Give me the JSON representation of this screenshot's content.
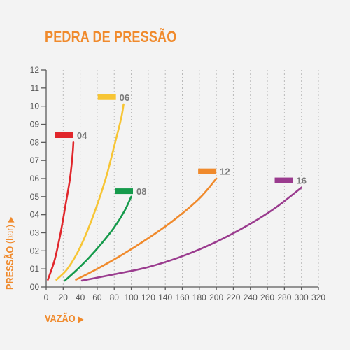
{
  "title": "PEDRA DE PRESSÃO",
  "chart_data": {
    "type": "line",
    "xlabel": "VAZÃO",
    "ylabel_main": "PRESSÃO",
    "ylabel_unit": "(bar)",
    "x_ticks": [
      "0",
      "20",
      "40",
      "60",
      "80",
      "100",
      "120",
      "140",
      "160",
      "180",
      "200",
      "220",
      "240",
      "260",
      "280",
      "300",
      "320"
    ],
    "x_tick_values": [
      0,
      20,
      40,
      60,
      80,
      100,
      120,
      140,
      160,
      180,
      200,
      220,
      240,
      260,
      280,
      300,
      320
    ],
    "y_ticks": [
      "00",
      "01",
      "02",
      "03",
      "04",
      "05",
      "06",
      "07",
      "08",
      "09",
      "10",
      "11",
      "12"
    ],
    "y_tick_values": [
      0,
      1,
      2,
      3,
      4,
      5,
      6,
      7,
      8,
      9,
      10,
      11,
      12
    ],
    "xlim": [
      0,
      320
    ],
    "ylim": [
      0,
      12
    ],
    "grid": "vertical dashed",
    "series": [
      {
        "name": "04",
        "color": "#e1262b",
        "x": [
          2,
          10,
          17,
          23,
          28,
          31,
          32
        ],
        "y": [
          0.4,
          1.5,
          3.0,
          4.6,
          6.0,
          7.3,
          8.0
        ],
        "legend_at": [
          32,
          8.4
        ]
      },
      {
        "name": "06",
        "color": "#f7c534",
        "x": [
          12,
          25,
          40,
          55,
          70,
          80,
          88,
          91
        ],
        "y": [
          0.4,
          1.0,
          2.2,
          3.9,
          6.0,
          7.8,
          9.3,
          10.1
        ],
        "legend_at": [
          82,
          10.5
        ]
      },
      {
        "name": "08",
        "color": "#159a4b",
        "x": [
          22,
          35,
          50,
          65,
          80,
          92,
          100
        ],
        "y": [
          0.35,
          0.9,
          1.6,
          2.4,
          3.3,
          4.2,
          5.0
        ],
        "legend_at": [
          102,
          5.3
        ]
      },
      {
        "name": "12",
        "color": "#f08a2c",
        "x": [
          35,
          60,
          90,
          120,
          150,
          180,
          200
        ],
        "y": [
          0.4,
          1.0,
          1.8,
          2.7,
          3.7,
          4.9,
          6.0
        ],
        "legend_at": [
          200,
          6.4
        ]
      },
      {
        "name": "16",
        "color": "#9a3b8e",
        "x": [
          42,
          80,
          120,
          160,
          200,
          240,
          270,
          300
        ],
        "y": [
          0.35,
          0.7,
          1.1,
          1.7,
          2.5,
          3.5,
          4.4,
          5.5
        ],
        "legend_at": [
          290,
          5.9
        ]
      }
    ]
  }
}
